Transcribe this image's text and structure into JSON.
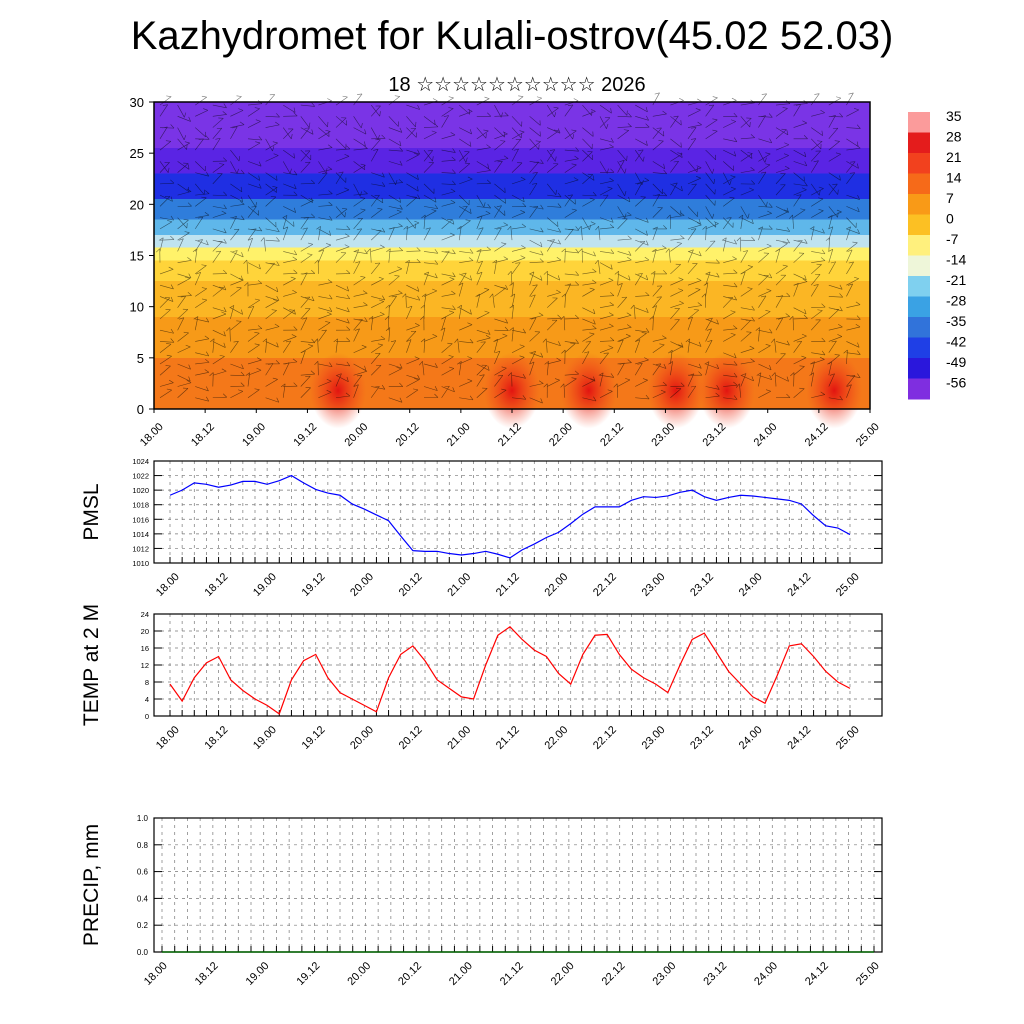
{
  "title": "Kazhydromet for Kulali-ostrov(45.02 52.03)",
  "subtitle": "18 ☆☆☆☆☆☆☆☆☆☆ 2026",
  "x_tick_labels": [
    "18.00",
    "18.12",
    "19.00",
    "19.12",
    "20.00",
    "20.12",
    "21.00",
    "21.12",
    "22.00",
    "22.12",
    "23.00",
    "23.12",
    "24.00",
    "24.12",
    "25.00"
  ],
  "chart_data": [
    {
      "type": "heatmap",
      "yticks": [
        0,
        5,
        10,
        15,
        20,
        25,
        30
      ],
      "ylim": [
        0,
        30
      ],
      "colorbar": {
        "labels": [
          "35",
          "28",
          "21",
          "14",
          "7",
          "0",
          "-7",
          "-14",
          "-21",
          "-28",
          "-35",
          "-42",
          "-49",
          "-56"
        ],
        "colors": [
          "#fb9b9b",
          "#e41c1c",
          "#f2411e",
          "#f66a19",
          "#f99a17",
          "#fcc023",
          "#fff07d",
          "#eef6d9",
          "#7fd0ef",
          "#3aa2e4",
          "#3173da",
          "#1f3fe6",
          "#2a17dc",
          "#7f2ee0"
        ]
      },
      "layers": [
        {
          "top": 30,
          "bottom": 25.5,
          "color": "#7a34e6"
        },
        {
          "top": 25.5,
          "bottom": 23,
          "color": "#5a24e4"
        },
        {
          "top": 23,
          "bottom": 20.5,
          "color": "#1f2fe3"
        },
        {
          "top": 20.5,
          "bottom": 18.5,
          "color": "#2f7ddb"
        },
        {
          "top": 18.5,
          "bottom": 17,
          "color": "#5fb7ea"
        },
        {
          "top": 17,
          "bottom": 15.8,
          "color": "#bfe3f0"
        },
        {
          "top": 15.8,
          "bottom": 14.5,
          "color": "#fff26a"
        },
        {
          "top": 14.5,
          "bottom": 12.5,
          "color": "#ffd43a"
        },
        {
          "top": 12.5,
          "bottom": 9,
          "color": "#fbb624"
        },
        {
          "top": 9,
          "bottom": 5,
          "color": "#f79a18"
        },
        {
          "top": 5,
          "bottom": 0,
          "color": "#f47819"
        }
      ],
      "warm_spots_x": [
        3.6,
        7.0,
        8.5,
        10.2,
        11.2,
        13.3
      ],
      "colors": {
        "plot_border": "#000000",
        "wind_barbs": "#000000"
      }
    },
    {
      "type": "line",
      "ylabel": "PMSL",
      "ylim": [
        1010,
        1024
      ],
      "yticks": [
        1010,
        1012,
        1014,
        1016,
        1018,
        1020,
        1022,
        1024
      ],
      "x": [
        0,
        1,
        2,
        3,
        4,
        5,
        6,
        7,
        8,
        9,
        10,
        11,
        12,
        13,
        14,
        15,
        16,
        17,
        18,
        19,
        20,
        21,
        22,
        23,
        24,
        25,
        26,
        27,
        28,
        29,
        30,
        31,
        32,
        33,
        34,
        35,
        36,
        37,
        38,
        39,
        40,
        41,
        42,
        43,
        44,
        45,
        46,
        47,
        48,
        49,
        50,
        51,
        52,
        53,
        54,
        55,
        56
      ],
      "series": [
        {
          "color": "#0000ff",
          "values": [
            1019.3,
            1020.0,
            1021.0,
            1020.8,
            1020.4,
            1020.7,
            1021.2,
            1021.2,
            1020.8,
            1021.3,
            1022.0,
            1021.0,
            1020.1,
            1019.6,
            1019.3,
            1018.1,
            1017.4,
            1016.6,
            1015.8,
            1013.7,
            1011.7,
            1011.6,
            1011.6,
            1011.3,
            1011.1,
            1011.3,
            1011.6,
            1011.2,
            1010.7,
            1011.8,
            1012.6,
            1013.5,
            1014.2,
            1015.4,
            1016.7,
            1017.7,
            1017.7,
            1017.7,
            1018.6,
            1019.1,
            1019.0,
            1019.2,
            1019.7,
            1020.0,
            1019.1,
            1018.6,
            1019.0,
            1019.3,
            1019.2,
            1019.0,
            1018.8,
            1018.6,
            1018.1,
            1016.5,
            1015.1,
            1014.8,
            1013.9
          ]
        }
      ]
    },
    {
      "type": "line",
      "ylabel": "TEMP at 2 M",
      "ylim": [
        0,
        24
      ],
      "yticks": [
        0,
        4,
        8,
        12,
        16,
        20,
        24
      ],
      "x": [
        0,
        1,
        2,
        3,
        4,
        5,
        6,
        7,
        8,
        9,
        10,
        11,
        12,
        13,
        14,
        15,
        16,
        17,
        18,
        19,
        20,
        21,
        22,
        23,
        24,
        25,
        26,
        27,
        28,
        29,
        30,
        31,
        32,
        33,
        34,
        35,
        36,
        37,
        38,
        39,
        40,
        41,
        42,
        43,
        44,
        45,
        46,
        47,
        48,
        49,
        50,
        51,
        52,
        53,
        54,
        55,
        56
      ],
      "series": [
        {
          "color": "#ff0000",
          "values": [
            7.5,
            3.5,
            9.0,
            12.5,
            14.0,
            8.5,
            6.0,
            4.0,
            2.5,
            0.5,
            8.5,
            13.0,
            14.5,
            9.0,
            5.5,
            4.0,
            2.5,
            1.0,
            9.0,
            14.5,
            16.5,
            13.0,
            8.5,
            6.5,
            4.5,
            4.0,
            12.0,
            19.0,
            21.0,
            18.0,
            15.5,
            14.0,
            10.0,
            7.5,
            14.5,
            19.0,
            19.2,
            14.5,
            11.0,
            9.0,
            7.5,
            5.5,
            12.0,
            18.0,
            19.5,
            15.0,
            10.5,
            7.5,
            4.5,
            3.0,
            9.5,
            16.5,
            17.0,
            14.0,
            10.5,
            8.0,
            6.5
          ]
        }
      ]
    },
    {
      "type": "line",
      "ylabel": "PRECIP, mm",
      "ylim": [
        0.0,
        1.0
      ],
      "yticks": [
        0.0,
        0.2,
        0.4,
        0.6,
        0.8,
        1.0
      ],
      "ytick_labels": [
        "0.0",
        "0.2",
        "0.4",
        "0.6",
        "0.8",
        "1.0"
      ],
      "series": [
        {
          "color": "#006400",
          "values": [
            0,
            0,
            0,
            0,
            0,
            0,
            0,
            0,
            0,
            0,
            0,
            0,
            0,
            0,
            0,
            0,
            0,
            0,
            0,
            0,
            0,
            0,
            0,
            0,
            0,
            0,
            0,
            0,
            0,
            0,
            0,
            0,
            0,
            0,
            0,
            0,
            0,
            0,
            0,
            0,
            0,
            0,
            0,
            0,
            0,
            0,
            0,
            0,
            0,
            0,
            0,
            0,
            0,
            0,
            0,
            0,
            0
          ]
        }
      ]
    }
  ]
}
